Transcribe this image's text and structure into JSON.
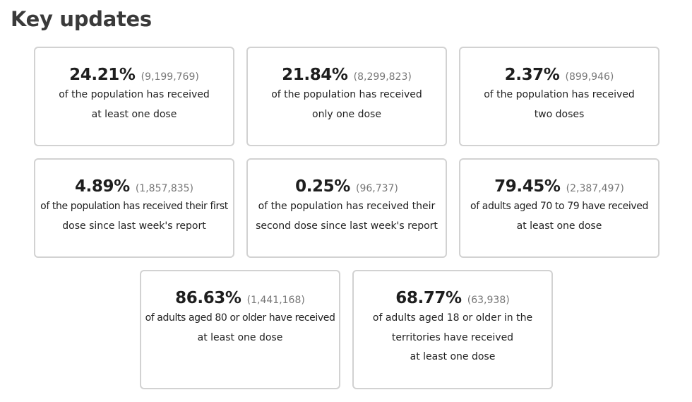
{
  "page": {
    "title": "Key updates"
  },
  "cards": [
    {
      "percent": "24.21%",
      "count": "(9,199,769)",
      "lines": [
        "of the population has received",
        "at least one dose"
      ]
    },
    {
      "percent": "21.84%",
      "count": "(8,299,823)",
      "lines": [
        "of the population has received",
        "only one dose"
      ]
    },
    {
      "percent": "2.37%",
      "count": "(899,946)",
      "lines": [
        "of the population has received",
        "two doses"
      ]
    },
    {
      "percent": "4.89%",
      "count": "(1,857,835)",
      "lines": [
        "of the population has received their first",
        "dose since last week's report"
      ]
    },
    {
      "percent": "0.25%",
      "count": "(96,737)",
      "lines": [
        "of the population has received their",
        "second dose since last week's report"
      ]
    },
    {
      "percent": "79.45%",
      "count": "(2,387,497)",
      "lines": [
        "of adults aged 70 to 79 have received",
        "at least one dose"
      ]
    },
    {
      "percent": "86.63%",
      "count": "(1,441,168)",
      "lines": [
        "of adults aged 80 or older have received",
        "at least one dose"
      ]
    },
    {
      "percent": "68.77%",
      "count": "(63,938)",
      "lines": [
        "of adults aged 18 or older in the",
        "territories have received",
        "at least one dose"
      ]
    }
  ]
}
